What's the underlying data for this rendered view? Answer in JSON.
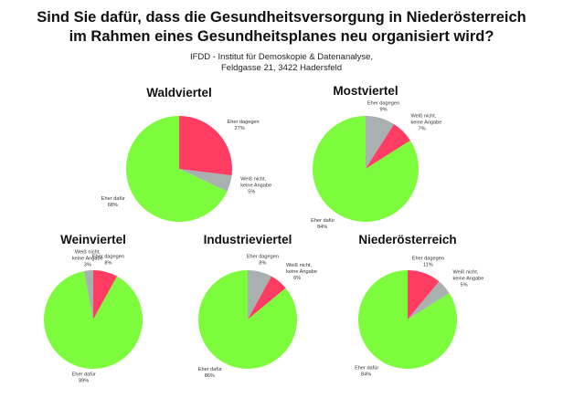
{
  "chart_data": {
    "type": "pie",
    "title": [
      "Sind Sie dafür, dass die Gesundheitsversorgung in Niederösterreich",
      "im Rahmen eines Gesundheitsplanes neu organisiert wird?"
    ],
    "subtitle": [
      "IFDD - Institut für Demoskopie & Datenanalyse,",
      "Feldgasse 21, 3422 Hadersfeld"
    ],
    "colors": {
      "green": "#7cfc3c",
      "red": "#ff3d63",
      "gray": "#a8b0b0"
    },
    "pies": [
      {
        "name": "Waldviertel",
        "slices": [
          {
            "label": "Eher dagegen",
            "value": 27,
            "color": "#ff3d63"
          },
          {
            "label": "Weiß nicht, keine Angabe",
            "value": 5,
            "color": "#a8b0b0"
          },
          {
            "label": "Eher dafür",
            "value": 68,
            "color": "#7cfc3c"
          }
        ]
      },
      {
        "name": "Mostviertel",
        "slices": [
          {
            "label": "Eher dagegen",
            "value": 9,
            "color": "#a8b0b0"
          },
          {
            "label": "Weiß nicht, keine Angabe",
            "value": 7,
            "color": "#ff3d63"
          },
          {
            "label": "Eher dafür",
            "value": 84,
            "color": "#7cfc3c"
          }
        ]
      },
      {
        "name": "Weinviertel",
        "slices": [
          {
            "label": "Eher dagegen",
            "value": 8,
            "color": "#ff3d63"
          },
          {
            "label": "Eher dafür",
            "value": 89,
            "color": "#7cfc3c"
          },
          {
            "label": "Weiß nicht, keine Angabe",
            "value": 3,
            "color": "#a8b0b0"
          }
        ]
      },
      {
        "name": "Industrieviertel",
        "slices": [
          {
            "label": "Eher dagegen",
            "value": 8,
            "color": "#a8b0b0"
          },
          {
            "label": "Weiß nicht, keine Angabe",
            "value": 6,
            "color": "#ff3d63"
          },
          {
            "label": "Eher dafür",
            "value": 86,
            "color": "#7cfc3c"
          }
        ]
      },
      {
        "name": "Niederösterreich",
        "slices": [
          {
            "label": "Eher dagegen",
            "value": 11,
            "color": "#ff3d63"
          },
          {
            "label": "Weiß nicht, keine Angabe",
            "value": 5,
            "color": "#a8b0b0"
          },
          {
            "label": "Eher dafür",
            "value": 84,
            "color": "#7cfc3c"
          }
        ]
      }
    ]
  }
}
